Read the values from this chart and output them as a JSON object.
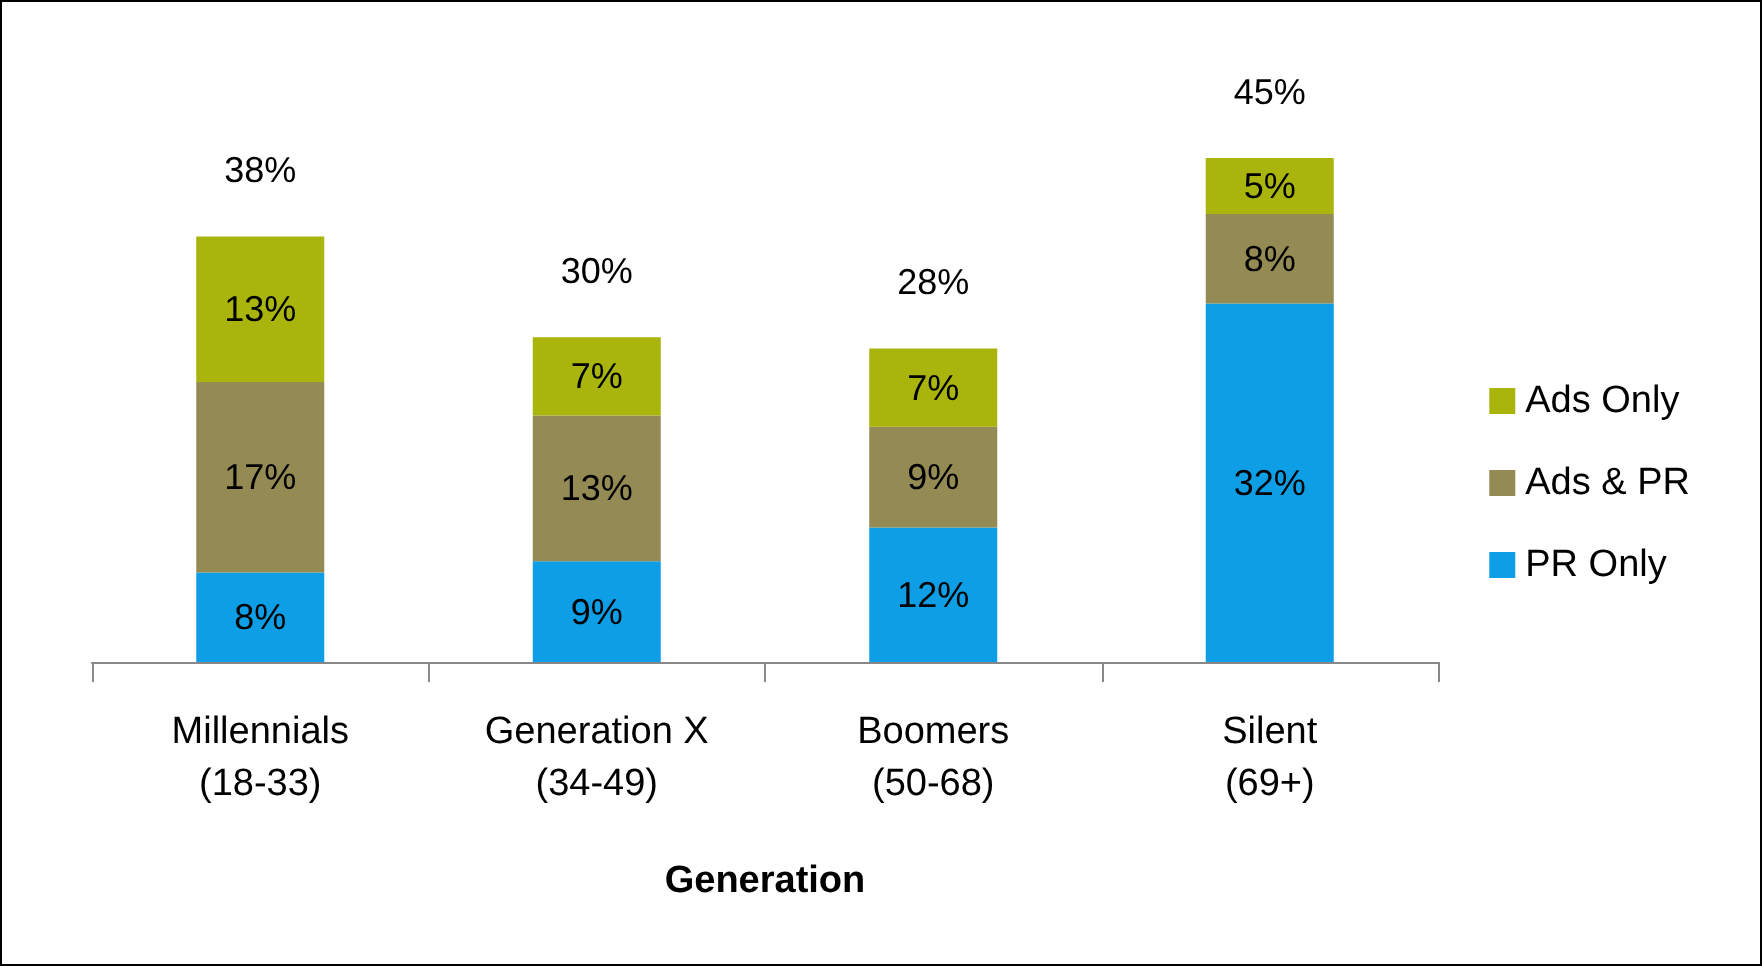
{
  "chart_data": {
    "type": "bar",
    "xlabel": "Generation",
    "stacked": true,
    "legend": "right",
    "categories": [
      "Millennials\n(18-33)",
      "Generation X\n(34-49)",
      "Boomers\n(50-68)",
      "Silent\n(69+)"
    ],
    "series": [
      {
        "name": "PR Only",
        "color": "#0d9ee6",
        "values": [
          8,
          9,
          12,
          32
        ],
        "value_labels": [
          "8%",
          "9%",
          "12%",
          "32%"
        ]
      },
      {
        "name": "Ads & PR",
        "color": "#948a54",
        "values": [
          17,
          13,
          9,
          8
        ],
        "value_labels": [
          "17%",
          "13%",
          "9%",
          "8%"
        ]
      },
      {
        "name": "Ads Only",
        "color": "#a9b50c",
        "values": [
          13,
          7,
          7,
          5
        ],
        "value_labels": [
          "13%",
          "7%",
          "7%",
          "5%"
        ]
      }
    ],
    "totals": [
      "38%",
      "30%",
      "28%",
      "45%"
    ]
  }
}
